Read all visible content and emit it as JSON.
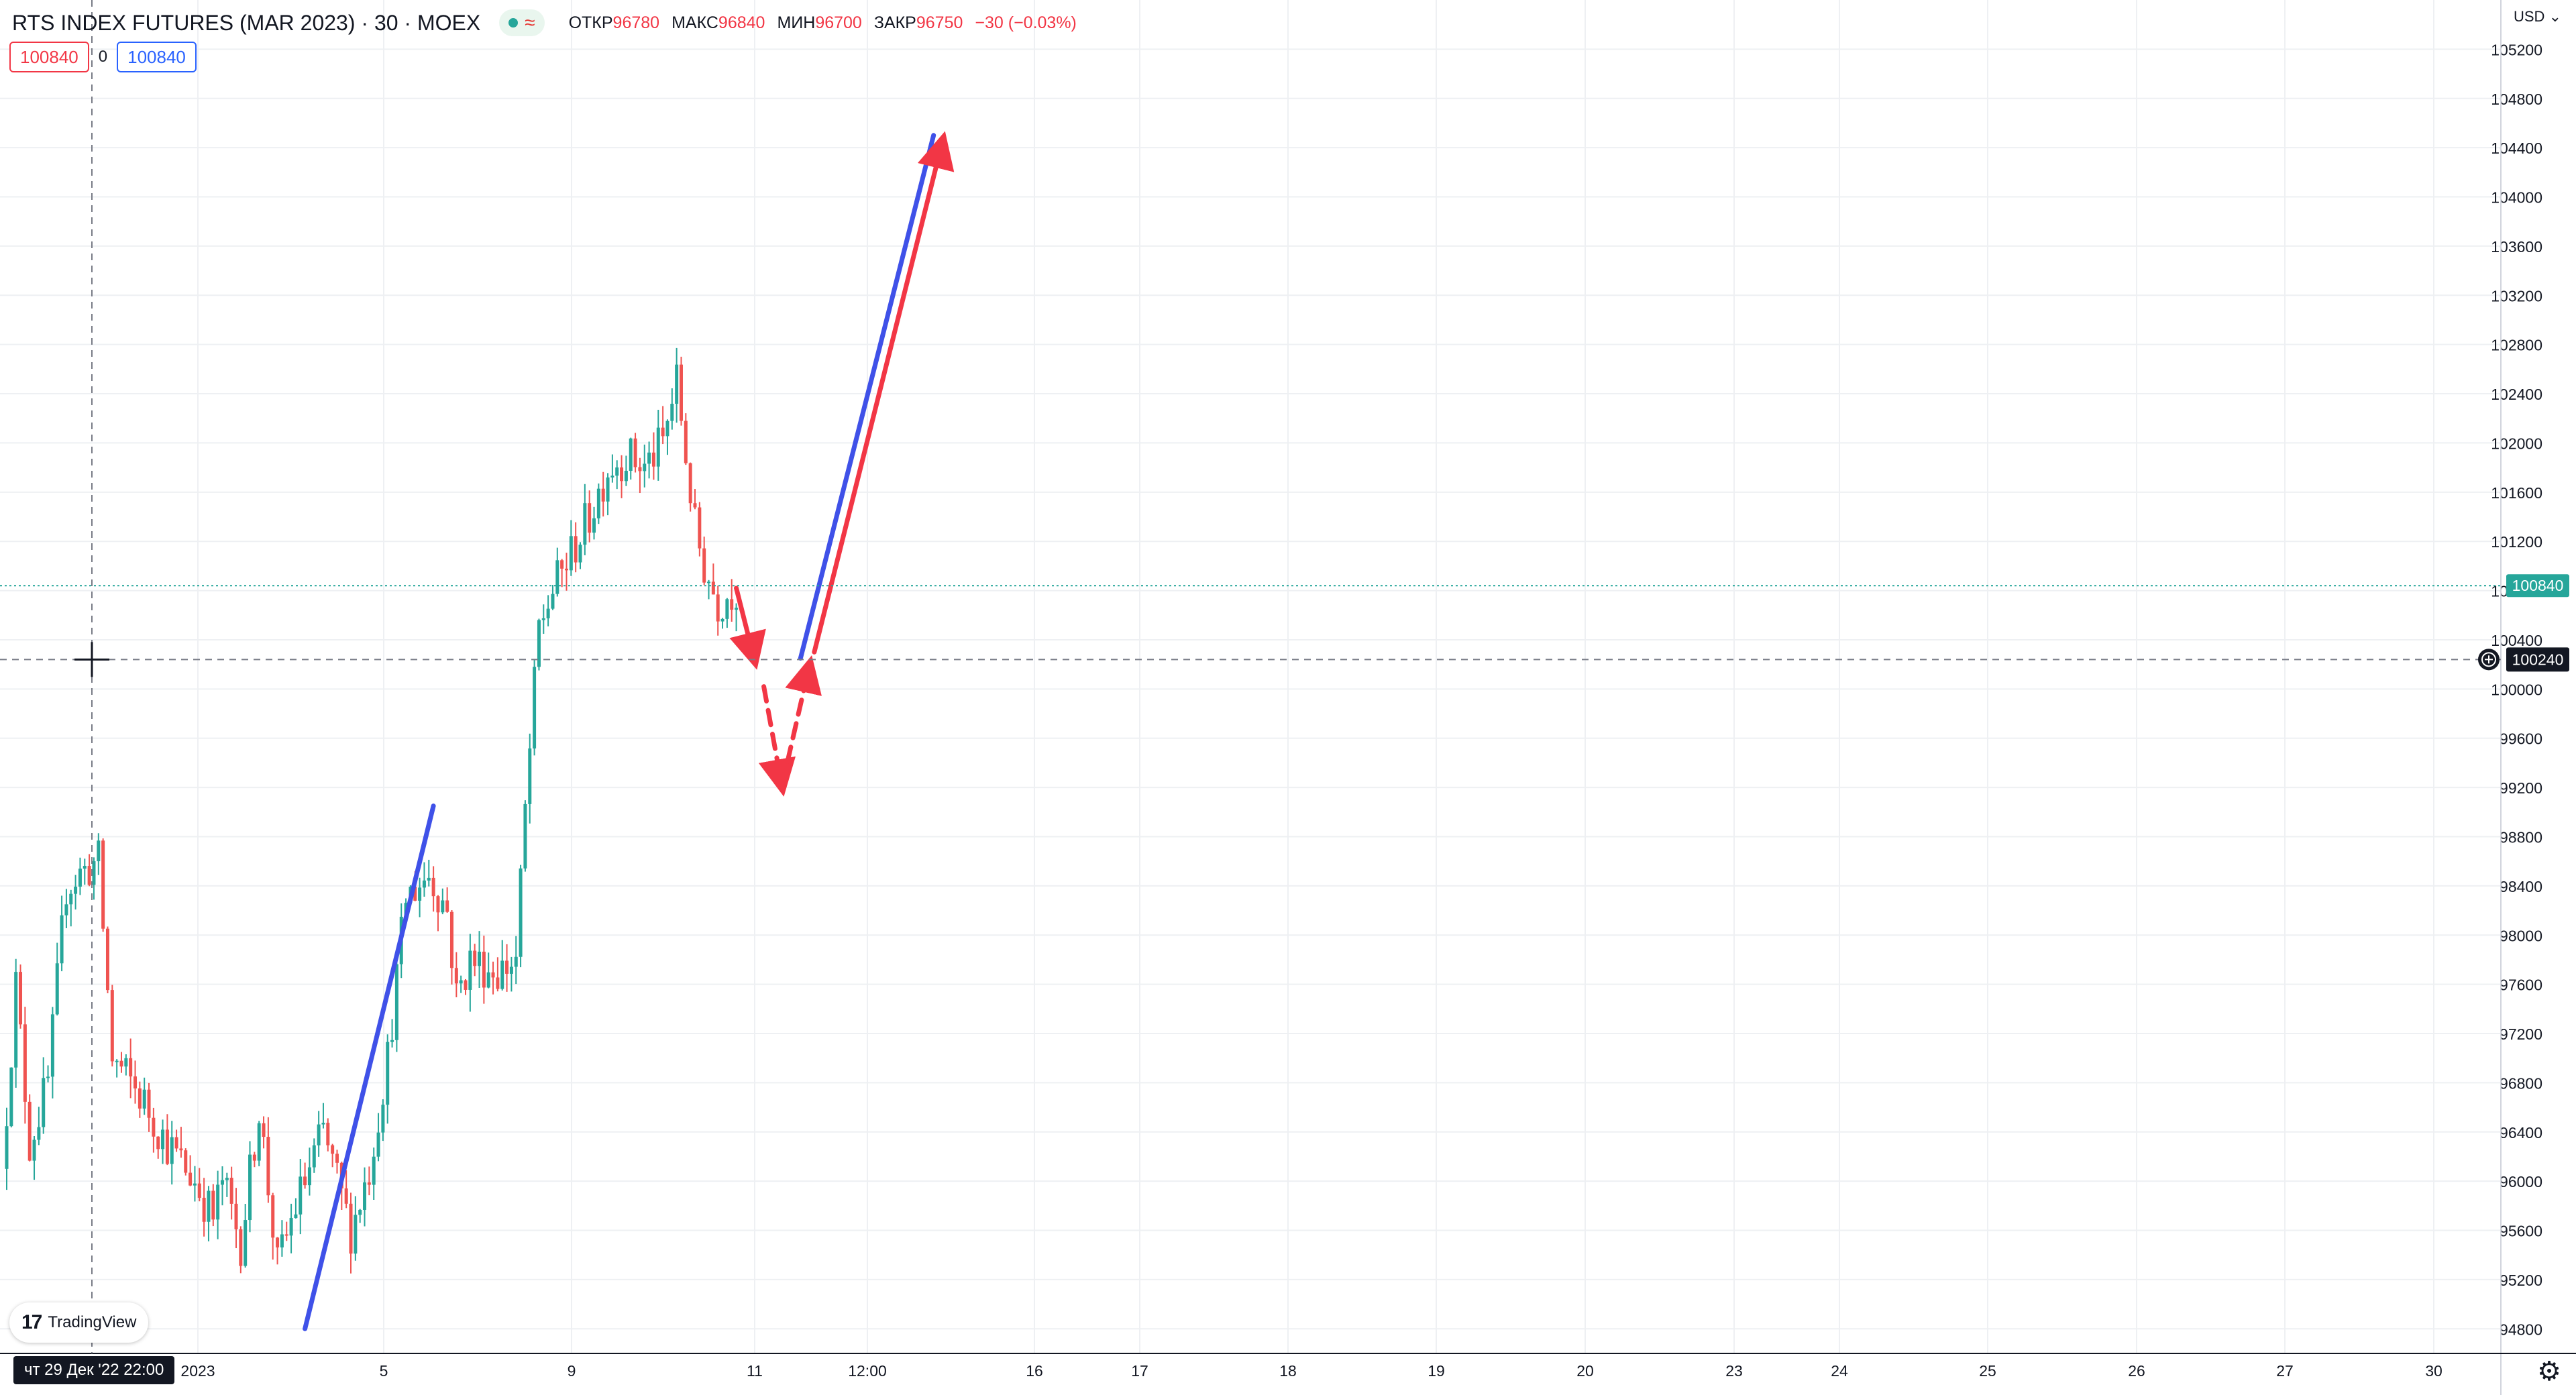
{
  "header": {
    "symbol_title": "RTS INDEX FUTURES (MAR 2023) · 30 · MOEX",
    "ohlc": [
      {
        "label": "ОТКР",
        "value": "96780"
      },
      {
        "label": "МАКС",
        "value": "96840"
      },
      {
        "label": "МИН",
        "value": "96700"
      },
      {
        "label": "ЗАКР",
        "value": "96750"
      },
      {
        "label": "",
        "value": "−30 (−0.03%)"
      }
    ]
  },
  "price_tags": {
    "sell": "100840",
    "spread": "0",
    "buy": "100840"
  },
  "currency_label": "USD",
  "logo_text": "TradingView",
  "crosshair_time": "чт 29 Дек '22   22:00",
  "colors": {
    "up": "#26a69a",
    "down": "#ef5350",
    "blue_line": "#3f51e8",
    "red_arrow": "#f23645",
    "last_price_line": "#26a69a",
    "grid": "#eef0f3"
  },
  "chart_data": {
    "type": "candlestick",
    "y_range": [
      94600,
      105600
    ],
    "y_ticks": [
      "94800",
      "95200",
      "95600",
      "96000",
      "96400",
      "96800",
      "97200",
      "97600",
      "98000",
      "98400",
      "98800",
      "99200",
      "99600",
      "100000",
      "100400",
      "100800",
      "101200",
      "101600",
      "102000",
      "102400",
      "102800",
      "103200",
      "103600",
      "104000",
      "104400",
      "104800",
      "105200"
    ],
    "x_tick_labels": [
      "2023",
      "5",
      "9",
      "11",
      "12:00",
      "16",
      "17",
      "18",
      "19",
      "20",
      "23",
      "24",
      "25",
      "26",
      "27",
      "30"
    ],
    "last_price": {
      "value": 100840,
      "label": "100840"
    },
    "crosshair_price": {
      "value": 100240,
      "label": "100240"
    },
    "price_path": [
      {
        "t": 0,
        "p": 96100
      },
      {
        "t": 1.5,
        "p": 97600
      },
      {
        "t": 3,
        "p": 96300
      },
      {
        "t": 5,
        "p": 96800
      },
      {
        "t": 7,
        "p": 98400
      },
      {
        "t": 8.5,
        "p": 98500
      },
      {
        "t": 10.5,
        "p": 98600
      },
      {
        "t": 12,
        "p": 97000
      },
      {
        "t": 15,
        "p": 96700
      },
      {
        "t": 18,
        "p": 96300
      },
      {
        "t": 21,
        "p": 96000
      },
      {
        "t": 23,
        "p": 95700
      },
      {
        "t": 24,
        "p": 96000
      },
      {
        "t": 26,
        "p": 95500
      },
      {
        "t": 28,
        "p": 96600
      },
      {
        "t": 30,
        "p": 95300
      },
      {
        "t": 32,
        "p": 95800
      },
      {
        "t": 35,
        "p": 96400
      },
      {
        "t": 38,
        "p": 95600
      },
      {
        "t": 40,
        "p": 96100
      },
      {
        "t": 42,
        "p": 97000
      },
      {
        "t": 44,
        "p": 98300
      },
      {
        "t": 46.5,
        "p": 98500
      },
      {
        "t": 48.5,
        "p": 98200
      },
      {
        "t": 49.5,
        "p": 97500
      },
      {
        "t": 51,
        "p": 97800
      },
      {
        "t": 54,
        "p": 97700
      },
      {
        "t": 56,
        "p": 97800
      },
      {
        "t": 57,
        "p": 99000
      },
      {
        "t": 58.5,
        "p": 100500
      },
      {
        "t": 60,
        "p": 100800
      },
      {
        "t": 62,
        "p": 101100
      },
      {
        "t": 64,
        "p": 101400
      },
      {
        "t": 66,
        "p": 101800
      },
      {
        "t": 68,
        "p": 101900
      },
      {
        "t": 70,
        "p": 101800
      },
      {
        "t": 72,
        "p": 102000
      },
      {
        "t": 73.5,
        "p": 102500
      },
      {
        "t": 74.5,
        "p": 101900
      },
      {
        "t": 75.5,
        "p": 101300
      },
      {
        "t": 76.5,
        "p": 101000
      },
      {
        "t": 78,
        "p": 100700
      },
      {
        "t": 79.5,
        "p": 100800
      }
    ],
    "drawings": [
      {
        "kind": "trend-line",
        "color": "blue",
        "from": {
          "t": 32.5,
          "p": 94800
        },
        "to": {
          "t": 46.5,
          "p": 99050
        }
      },
      {
        "kind": "arrow",
        "color": "red",
        "from": {
          "t": 79.5,
          "p": 100820
        },
        "to": {
          "t": 81.5,
          "p": 100230
        }
      },
      {
        "kind": "dashed-arrow",
        "color": "red",
        "from": {
          "t": 82.5,
          "p": 100020
        },
        "to": {
          "t": 84.5,
          "p": 99200
        }
      },
      {
        "kind": "dashed-arrow",
        "color": "red",
        "from": {
          "t": 84.5,
          "p": 99220
        },
        "to": {
          "t": 87.5,
          "p": 100200
        }
      },
      {
        "kind": "trend-line",
        "color": "blue",
        "from": {
          "t": 86.5,
          "p": 100250
        },
        "to": {
          "t": 101,
          "p": 104500
        }
      },
      {
        "kind": "arrow",
        "color": "red",
        "from": {
          "t": 88,
          "p": 100300
        },
        "to": {
          "t": 102,
          "p": 104460
        }
      }
    ]
  }
}
